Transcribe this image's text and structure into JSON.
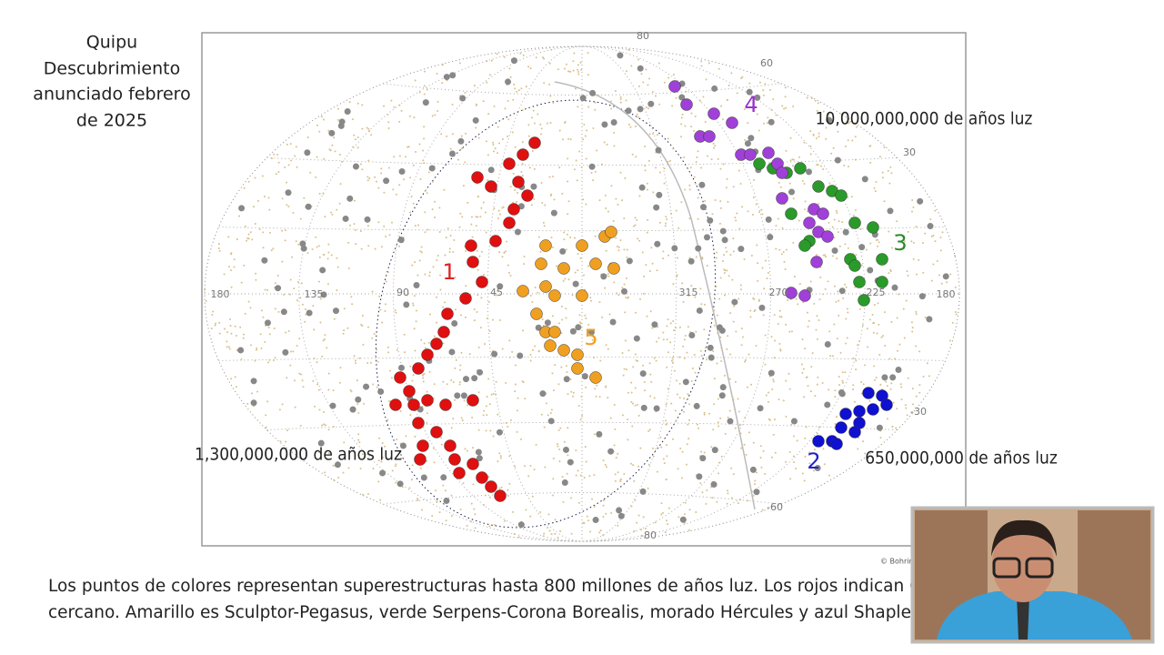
{
  "slide": {
    "title_lines": [
      "Quipu",
      "Descubrimiento",
      "anunciado febrero",
      "de 2025"
    ],
    "map": {
      "distance_labels": [
        "10,000,000,000 de años luz",
        "1,300,000,000 de años luz",
        "650,000,000 de años luz"
      ],
      "structure_labels": [
        "1",
        "2",
        "3",
        "4",
        "5"
      ],
      "latitude_labels": [
        "80",
        "60",
        "30",
        "-30",
        "-60",
        "-80"
      ],
      "longitude_labels": [
        "180",
        "135",
        "90",
        "45",
        "315",
        "270",
        "225",
        "180"
      ],
      "credit": "© Bohrin"
    },
    "caption_lines": [
      "Los puntos de colores representan superestructuras hasta 800 millones de años luz. Los rojos indican Quipu",
      "cercano. Amarillo es Sculptor-Pegasus, verde Serpens-Corona Borealis, morado Hércules y azul Shapley."
    ]
  }
}
